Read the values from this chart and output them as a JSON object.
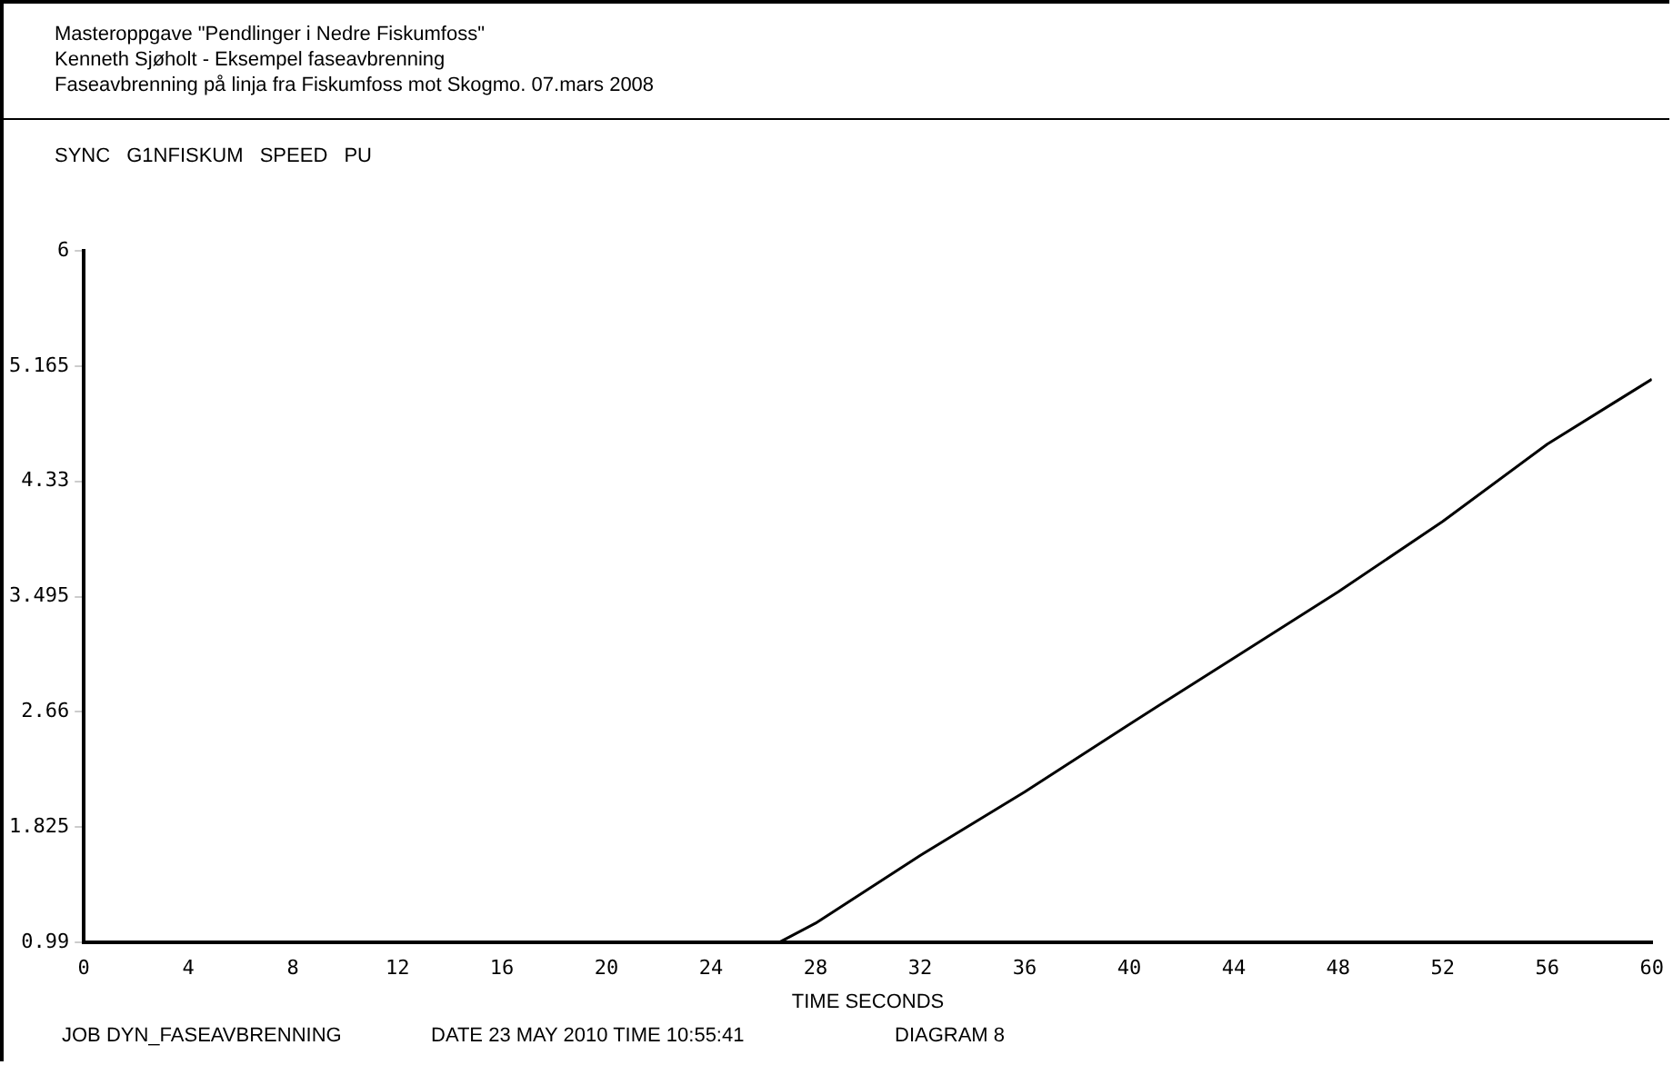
{
  "chart_data": {
    "type": "line",
    "title": "Masteroppgave \"Pendlinger i Nedre Fiskumfoss\"",
    "subtitle": "Kenneth Sjøholt - Eksempel faseavbrenning",
    "annotations": [
      "Faseavbrenning på linja fra Fiskumfoss mot Skogmo. 07.mars 2008",
      "JOB DYN_FASEAVBRENNING",
      "DATE 23 MAY 2010 TIME 10:55:41",
      "DIAGRAM 8"
    ],
    "ylabel": "SYNC G1NFISKUM SPEED PU",
    "xlabel": "TIME SECONDS",
    "x": [
      0,
      26.6,
      28,
      32,
      36,
      40,
      44,
      48,
      52,
      56,
      60
    ],
    "series": [
      {
        "color": "#000000",
        "values": [
          0.99,
          0.99,
          1.13,
          1.62,
          2.08,
          2.57,
          3.05,
          3.53,
          4.04,
          4.6,
          5.07
        ]
      }
    ],
    "xlim": [
      0,
      60
    ],
    "xticks": [
      0,
      4,
      8,
      12,
      16,
      20,
      24,
      28,
      32,
      36,
      40,
      44,
      48,
      52,
      56,
      60
    ],
    "ylim": [
      0.99,
      6
    ],
    "yticks": [
      0.99,
      1.825,
      2.66,
      3.495,
      4.33,
      5.165,
      6
    ],
    "grid": false,
    "legend": false,
    "marker": "none",
    "line_style": "solid"
  }
}
